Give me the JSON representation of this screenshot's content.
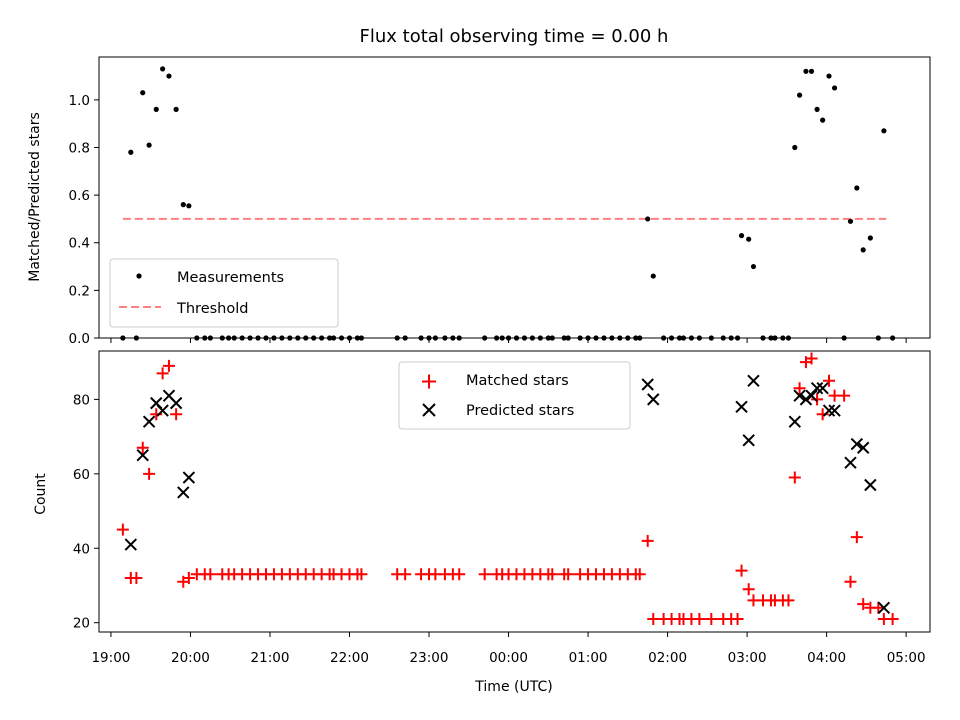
{
  "chart_data": [
    {
      "type": "scatter",
      "title": "Flux total observing time = 0.00 h",
      "ylabel": "Matched/Predicted stars",
      "xlabel": "",
      "xlim": [
        18.85,
        29.3
      ],
      "ylim": [
        0,
        1.18
      ],
      "yticks": [
        0.0,
        0.2,
        0.4,
        0.6,
        0.8,
        1.0
      ],
      "ytick_labels": [
        "0.0",
        "0.2",
        "0.4",
        "0.6",
        "0.8",
        "1.0"
      ],
      "legend": {
        "position": "lower-left",
        "entries": [
          "Measurements",
          "Threshold"
        ]
      },
      "threshold": {
        "name": "Threshold",
        "value": 0.5,
        "x_range": [
          19.15,
          28.75
        ],
        "color": "#ff7f7f",
        "style": "dashed"
      },
      "series": [
        {
          "name": "Measurements",
          "color": "#000000",
          "marker": "dot",
          "points": [
            [
              19.15,
              0.0
            ],
            [
              19.25,
              0.78
            ],
            [
              19.32,
              0.0
            ],
            [
              19.4,
              1.03
            ],
            [
              19.48,
              0.81
            ],
            [
              19.57,
              0.96
            ],
            [
              19.65,
              1.13
            ],
            [
              19.73,
              1.1
            ],
            [
              19.82,
              0.96
            ],
            [
              19.91,
              0.56
            ],
            [
              19.98,
              0.555
            ],
            [
              20.08,
              0.0
            ],
            [
              20.18,
              0.0
            ],
            [
              20.25,
              0.0
            ],
            [
              20.4,
              0.0
            ],
            [
              20.48,
              0.0
            ],
            [
              20.55,
              0.0
            ],
            [
              20.65,
              0.0
            ],
            [
              20.75,
              0.0
            ],
            [
              20.85,
              0.0
            ],
            [
              20.95,
              0.0
            ],
            [
              21.05,
              0.0
            ],
            [
              21.15,
              0.0
            ],
            [
              21.25,
              0.0
            ],
            [
              21.35,
              0.0
            ],
            [
              21.45,
              0.0
            ],
            [
              21.55,
              0.0
            ],
            [
              21.65,
              0.0
            ],
            [
              21.75,
              0.0
            ],
            [
              21.8,
              0.0
            ],
            [
              21.9,
              0.0
            ],
            [
              22.0,
              0.0
            ],
            [
              22.1,
              0.0
            ],
            [
              22.15,
              0.0
            ],
            [
              22.6,
              0.0
            ],
            [
              22.7,
              0.0
            ],
            [
              22.9,
              0.0
            ],
            [
              23.0,
              0.0
            ],
            [
              23.08,
              0.0
            ],
            [
              23.2,
              0.0
            ],
            [
              23.3,
              0.0
            ],
            [
              23.38,
              0.0
            ],
            [
              23.7,
              0.0
            ],
            [
              23.85,
              0.0
            ],
            [
              23.92,
              0.0
            ],
            [
              24.0,
              0.0
            ],
            [
              24.1,
              0.0
            ],
            [
              24.2,
              0.0
            ],
            [
              24.3,
              0.0
            ],
            [
              24.4,
              0.0
            ],
            [
              24.5,
              0.0
            ],
            [
              24.55,
              0.0
            ],
            [
              24.7,
              0.0
            ],
            [
              24.75,
              0.0
            ],
            [
              24.9,
              0.0
            ],
            [
              25.0,
              0.0
            ],
            [
              25.1,
              0.0
            ],
            [
              25.2,
              0.0
            ],
            [
              25.3,
              0.0
            ],
            [
              25.4,
              0.0
            ],
            [
              25.5,
              0.0
            ],
            [
              25.6,
              0.0
            ],
            [
              25.65,
              0.0
            ],
            [
              25.75,
              0.5
            ],
            [
              25.82,
              0.26
            ],
            [
              25.95,
              0.0
            ],
            [
              26.05,
              0.0
            ],
            [
              26.15,
              0.0
            ],
            [
              26.2,
              0.0
            ],
            [
              26.3,
              0.0
            ],
            [
              26.4,
              0.0
            ],
            [
              26.55,
              0.0
            ],
            [
              26.7,
              0.0
            ],
            [
              26.8,
              0.0
            ],
            [
              26.88,
              0.0
            ],
            [
              26.93,
              0.43
            ],
            [
              27.02,
              0.415
            ],
            [
              27.08,
              0.3
            ],
            [
              27.2,
              0.0
            ],
            [
              27.3,
              0.0
            ],
            [
              27.35,
              0.0
            ],
            [
              27.45,
              0.0
            ],
            [
              27.52,
              0.0
            ],
            [
              27.6,
              0.8
            ],
            [
              27.66,
              1.02
            ],
            [
              27.74,
              1.12
            ],
            [
              27.81,
              1.12
            ],
            [
              27.88,
              0.96
            ],
            [
              27.95,
              0.915
            ],
            [
              28.03,
              1.1
            ],
            [
              28.1,
              1.05
            ],
            [
              28.22,
              0.0
            ],
            [
              28.3,
              0.49
            ],
            [
              28.38,
              0.63
            ],
            [
              28.46,
              0.37
            ],
            [
              28.55,
              0.42
            ],
            [
              28.65,
              0.0
            ],
            [
              28.72,
              0.87
            ],
            [
              28.83,
              0.0
            ]
          ]
        }
      ]
    },
    {
      "type": "scatter",
      "title": "",
      "xlabel": "Time (UTC)",
      "ylabel": "Count",
      "xlim": [
        18.85,
        29.3
      ],
      "ylim": [
        17.5,
        93
      ],
      "yticks": [
        20,
        40,
        60,
        80
      ],
      "ytick_labels": [
        "20",
        "40",
        "60",
        "80"
      ],
      "xticks": [
        19,
        20,
        21,
        22,
        23,
        24,
        25,
        26,
        27,
        28,
        29
      ],
      "xtick_labels": [
        "19:00",
        "20:00",
        "21:00",
        "22:00",
        "23:00",
        "00:00",
        "01:00",
        "02:00",
        "03:00",
        "04:00",
        "05:00"
      ],
      "legend": {
        "position": "upper-center",
        "entries": [
          "Matched stars",
          "Predicted stars"
        ]
      },
      "series": [
        {
          "name": "Matched stars",
          "color": "#ff0000",
          "marker": "plus",
          "points": [
            [
              19.15,
              45
            ],
            [
              19.25,
              32
            ],
            [
              19.32,
              32
            ],
            [
              19.4,
              67
            ],
            [
              19.48,
              60
            ],
            [
              19.57,
              76
            ],
            [
              19.65,
              87
            ],
            [
              19.73,
              89
            ],
            [
              19.82,
              76
            ],
            [
              19.91,
              31
            ],
            [
              19.98,
              32
            ],
            [
              20.08,
              33
            ],
            [
              20.18,
              33
            ],
            [
              20.25,
              33
            ],
            [
              20.4,
              33
            ],
            [
              20.48,
              33
            ],
            [
              20.55,
              33
            ],
            [
              20.65,
              33
            ],
            [
              20.75,
              33
            ],
            [
              20.85,
              33
            ],
            [
              20.95,
              33
            ],
            [
              21.05,
              33
            ],
            [
              21.15,
              33
            ],
            [
              21.25,
              33
            ],
            [
              21.35,
              33
            ],
            [
              21.45,
              33
            ],
            [
              21.55,
              33
            ],
            [
              21.65,
              33
            ],
            [
              21.75,
              33
            ],
            [
              21.8,
              33
            ],
            [
              21.9,
              33
            ],
            [
              22.0,
              33
            ],
            [
              22.1,
              33
            ],
            [
              22.15,
              33
            ],
            [
              22.6,
              33
            ],
            [
              22.7,
              33
            ],
            [
              22.9,
              33
            ],
            [
              23.0,
              33
            ],
            [
              23.08,
              33
            ],
            [
              23.2,
              33
            ],
            [
              23.3,
              33
            ],
            [
              23.38,
              33
            ],
            [
              23.7,
              33
            ],
            [
              23.85,
              33
            ],
            [
              23.92,
              33
            ],
            [
              24.0,
              33
            ],
            [
              24.1,
              33
            ],
            [
              24.2,
              33
            ],
            [
              24.3,
              33
            ],
            [
              24.4,
              33
            ],
            [
              24.5,
              33
            ],
            [
              24.55,
              33
            ],
            [
              24.7,
              33
            ],
            [
              24.75,
              33
            ],
            [
              24.9,
              33
            ],
            [
              25.0,
              33
            ],
            [
              25.1,
              33
            ],
            [
              25.2,
              33
            ],
            [
              25.3,
              33
            ],
            [
              25.4,
              33
            ],
            [
              25.5,
              33
            ],
            [
              25.6,
              33
            ],
            [
              25.65,
              33
            ],
            [
              25.75,
              42
            ],
            [
              25.82,
              21
            ],
            [
              25.95,
              21
            ],
            [
              26.05,
              21
            ],
            [
              26.15,
              21
            ],
            [
              26.2,
              21
            ],
            [
              26.3,
              21
            ],
            [
              26.4,
              21
            ],
            [
              26.55,
              21
            ],
            [
              26.7,
              21
            ],
            [
              26.8,
              21
            ],
            [
              26.88,
              21
            ],
            [
              26.93,
              34
            ],
            [
              27.02,
              29
            ],
            [
              27.08,
              26
            ],
            [
              27.2,
              26
            ],
            [
              27.3,
              26
            ],
            [
              27.35,
              26
            ],
            [
              27.45,
              26
            ],
            [
              27.52,
              26
            ],
            [
              27.6,
              59
            ],
            [
              27.66,
              83
            ],
            [
              27.74,
              90
            ],
            [
              27.81,
              91
            ],
            [
              27.88,
              80
            ],
            [
              27.95,
              76
            ],
            [
              28.03,
              85
            ],
            [
              28.1,
              81
            ],
            [
              28.22,
              81
            ],
            [
              28.3,
              31
            ],
            [
              28.38,
              43
            ],
            [
              28.46,
              25
            ],
            [
              28.55,
              24
            ],
            [
              28.65,
              24
            ],
            [
              28.72,
              21
            ],
            [
              28.83,
              21
            ]
          ]
        },
        {
          "name": "Predicted stars",
          "color": "#000000",
          "marker": "x",
          "points": [
            [
              19.25,
              41
            ],
            [
              19.4,
              65
            ],
            [
              19.48,
              74
            ],
            [
              19.57,
              79
            ],
            [
              19.65,
              77
            ],
            [
              19.73,
              81
            ],
            [
              19.82,
              79
            ],
            [
              19.91,
              55
            ],
            [
              19.98,
              59
            ],
            [
              25.75,
              84
            ],
            [
              25.82,
              80
            ],
            [
              26.93,
              78
            ],
            [
              27.02,
              69
            ],
            [
              27.08,
              85
            ],
            [
              27.6,
              74
            ],
            [
              27.66,
              81
            ],
            [
              27.74,
              80
            ],
            [
              27.81,
              81
            ],
            [
              27.88,
              83
            ],
            [
              27.95,
              83
            ],
            [
              28.03,
              77
            ],
            [
              28.1,
              77
            ],
            [
              28.3,
              63
            ],
            [
              28.38,
              68
            ],
            [
              28.46,
              67
            ],
            [
              28.55,
              57
            ],
            [
              28.72,
              24
            ]
          ]
        }
      ]
    }
  ]
}
